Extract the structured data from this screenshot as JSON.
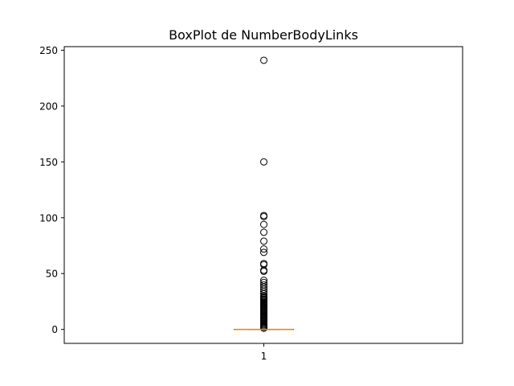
{
  "chart_data": {
    "type": "box",
    "title": "BoxPlot de NumberBodyLinks",
    "xlabel": "",
    "ylabel": "",
    "categories": [
      "1"
    ],
    "ylim": [
      -12.5,
      253.2
    ],
    "yticks": [
      0,
      50,
      100,
      150,
      200,
      250
    ],
    "ytick_labels": [
      "0",
      "50",
      "100",
      "150",
      "200",
      "250"
    ],
    "grid": false,
    "box": {
      "min": 0,
      "q1": 0,
      "median": 0,
      "q3": 0,
      "max": 0
    },
    "outliers": [
      1,
      2,
      3,
      4,
      5,
      6,
      7,
      8,
      9,
      10,
      11,
      12,
      13,
      14,
      15,
      16,
      17,
      18,
      19,
      20,
      21,
      22,
      23,
      24,
      25,
      26,
      27,
      28,
      29,
      30,
      32,
      34,
      36,
      38,
      40,
      42,
      44,
      52,
      53,
      58,
      59,
      69,
      72,
      79,
      87,
      94,
      101,
      102,
      150,
      241
    ],
    "colors": {
      "median": "#ff7f0e",
      "box": "#000000",
      "outlier": "#000000"
    }
  }
}
